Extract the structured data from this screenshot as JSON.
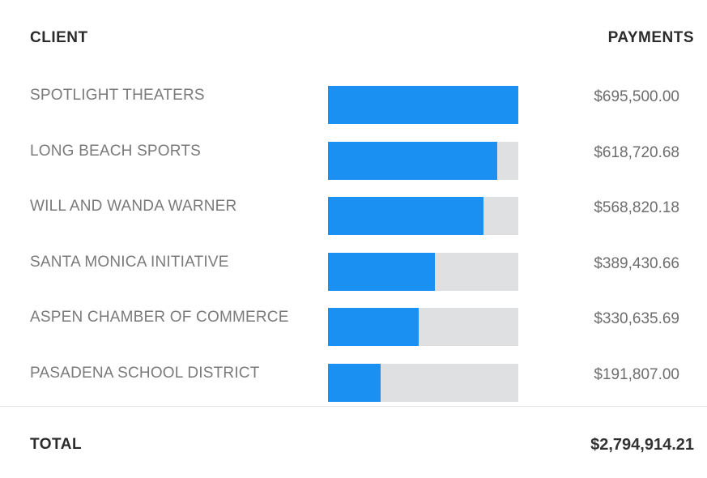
{
  "header": {
    "client_label": "CLIENT",
    "payments_label": "PAYMENTS"
  },
  "chart_data": {
    "type": "bar",
    "orientation": "horizontal",
    "categories": [
      "SPOTLIGHT THEATERS",
      "LONG BEACH SPORTS",
      "WILL AND WANDA WARNER",
      "SANTA MONICA INITIATIVE",
      "ASPEN CHAMBER OF COMMERCE",
      "PASADENA SCHOOL DISTRICT"
    ],
    "values": [
      695500.0,
      618720.68,
      568820.18,
      389430.66,
      330635.69,
      191807.0
    ],
    "value_labels": [
      "$695,500.00",
      "$618,720.68",
      "$568,820.18",
      "$389,430.66",
      "$330,635.69",
      "$191,807.00"
    ],
    "xlim": [
      0,
      695500
    ],
    "title": "",
    "xlabel": "",
    "ylabel": "",
    "grid": false,
    "legend": "none",
    "bar_color": "#1a90f2",
    "track_color": "#dfe0e2"
  },
  "footer": {
    "total_label": "TOTAL",
    "total_value": "$2,794,914.21"
  }
}
